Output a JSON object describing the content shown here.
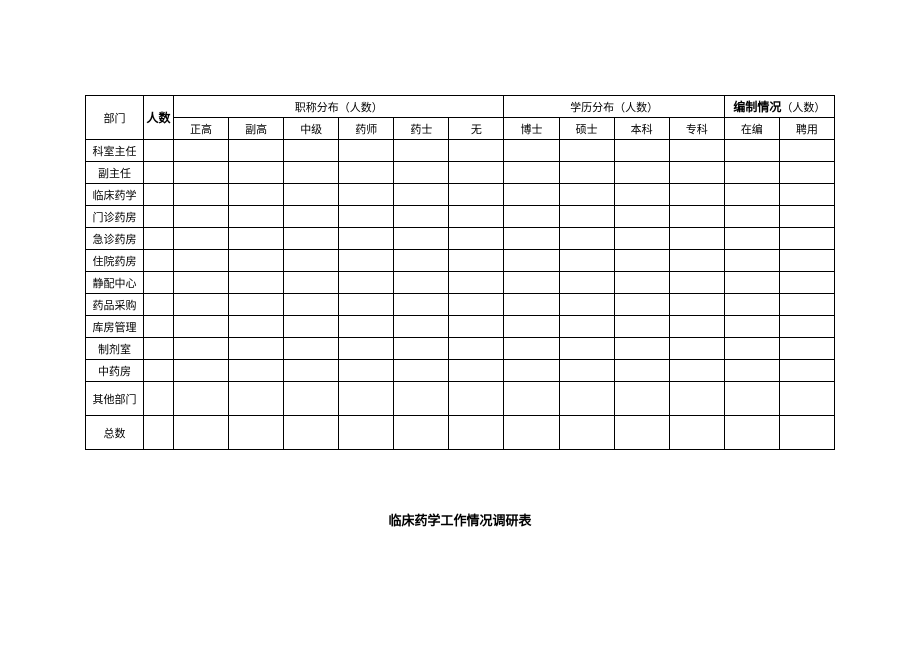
{
  "header": {
    "dept": "部门",
    "count": "人数",
    "group1": "职称分布（人数）",
    "group2": "学历分布（人数）",
    "group3_bold": "编制情况",
    "group3_light": "（人数）",
    "sub1": [
      "正高",
      "副高",
      "中级",
      "药师",
      "药士",
      "无"
    ],
    "sub2": [
      "博士",
      "硕士",
      "本科",
      "专科"
    ],
    "sub3": [
      "在编",
      "聘用"
    ]
  },
  "rows": [
    {
      "label": "科室主任",
      "tall": false
    },
    {
      "label": "副主任",
      "tall": false
    },
    {
      "label": "临床药学",
      "tall": false
    },
    {
      "label": "门诊药房",
      "tall": false
    },
    {
      "label": "急诊药房",
      "tall": false
    },
    {
      "label": "住院药房",
      "tall": false
    },
    {
      "label": "静配中心",
      "tall": false
    },
    {
      "label": "药品采购",
      "tall": false
    },
    {
      "label": "库房管理",
      "tall": false
    },
    {
      "label": "制剂室",
      "tall": false
    },
    {
      "label": "中药房",
      "tall": false
    },
    {
      "label": "其他部门",
      "tall": true
    },
    {
      "label": "总数",
      "tall": true
    }
  ],
  "footer": "临床药学工作情况调研表",
  "numDataCols": 12
}
